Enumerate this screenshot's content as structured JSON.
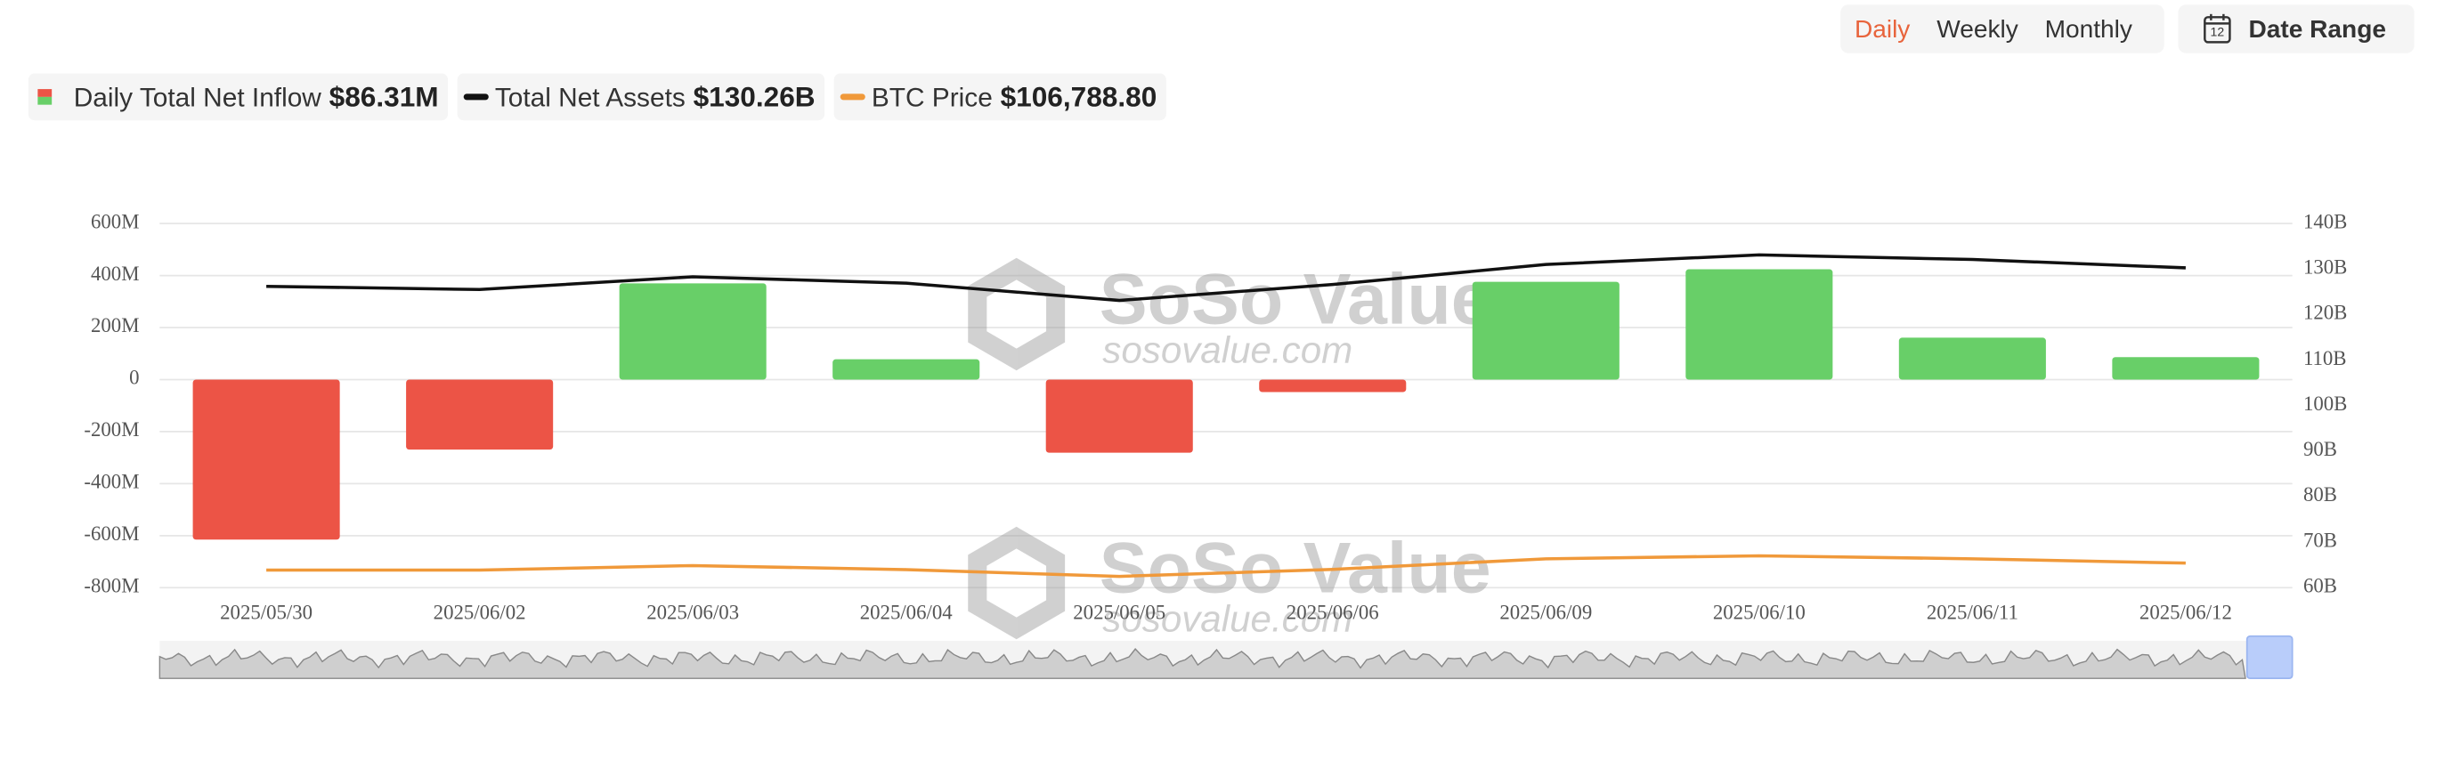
{
  "chart_data": {
    "type": "bar",
    "controls": {
      "periods": [
        "Daily",
        "Weekly",
        "Monthly"
      ],
      "active": 0,
      "date_range": "Date Range"
    },
    "watermark": {
      "brand": "SoSo Value",
      "url": "sosovalue.com"
    },
    "categories": [
      "2025/05/30",
      "2025/06/02",
      "2025/06/03",
      "2025/06/04",
      "2025/06/05",
      "2025/06/06",
      "2025/06/09",
      "2025/06/10",
      "2025/06/11",
      "2025/06/12"
    ],
    "series": [
      {
        "name": "Daily Total Net Inflow",
        "latest_label": "$86.31M",
        "type": "bar",
        "positive_color": "#68cf68",
        "negative_color": "#ec5446",
        "values": [
          -615,
          -269,
          370,
          78,
          -281,
          -48,
          376,
          424,
          161,
          86.31
        ]
      },
      {
        "name": "Total Net Assets",
        "latest_label": "$130.26B",
        "type": "line",
        "axis": "y2",
        "color": "#111111",
        "values": [
          126.2,
          125.5,
          128.3,
          126.9,
          123.1,
          126.6,
          131.0,
          133.1,
          132.1,
          130.26
        ]
      },
      {
        "name": "BTC Price",
        "latest_label": "$106,788.80",
        "type": "line",
        "axis": "y3",
        "color": "#f0993a",
        "values": [
          104000,
          104000,
          105800,
          104200,
          101500,
          104300,
          108500,
          109700,
          108500,
          106788.8
        ]
      }
    ],
    "ylim": [
      -800,
      600
    ],
    "yticks": [
      {
        "value": -800,
        "label": "-800M"
      },
      {
        "value": -600,
        "label": "-600M"
      },
      {
        "value": -400,
        "label": "-400M"
      },
      {
        "value": -200,
        "label": "-200M"
      },
      0,
      {
        "value": 200,
        "label": "200M"
      },
      {
        "value": 400,
        "label": "400M"
      },
      {
        "value": 600,
        "label": "600M"
      }
    ],
    "y2lim": [
      60,
      140
    ],
    "y2ticks": [
      {
        "value": 60,
        "label": "60B"
      },
      {
        "value": 70,
        "label": "70B"
      },
      {
        "value": 80,
        "label": "80B"
      },
      {
        "value": 90,
        "label": "90B"
      },
      {
        "value": 100,
        "label": "100B"
      },
      {
        "value": 110,
        "label": "110B"
      },
      {
        "value": 120,
        "label": "120B"
      },
      {
        "value": 130,
        "label": "130B"
      },
      {
        "value": 140,
        "label": "140B"
      }
    ],
    "y3lim": [
      97000,
      242000
    ],
    "grid": true
  }
}
